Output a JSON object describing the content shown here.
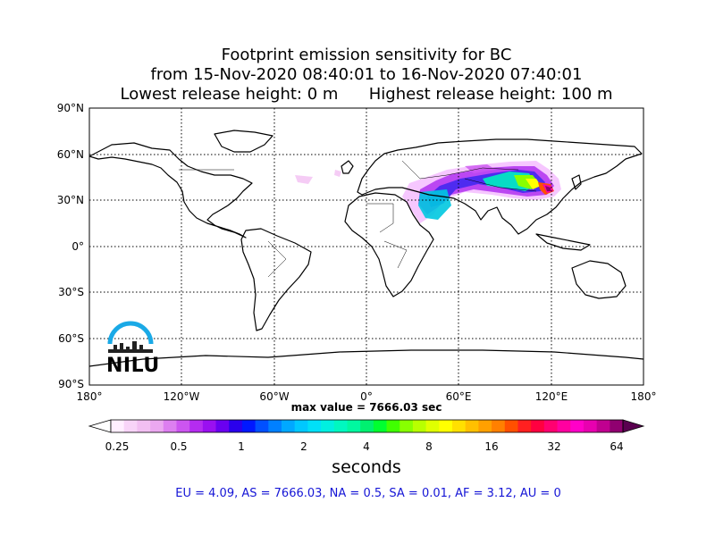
{
  "title": {
    "line1": "Footprint emission sensitivity for BC",
    "line2": "from 15-Nov-2020 08:40:01 to 16-Nov-2020 07:40:01",
    "line3": "Lowest release height: 0 m      Highest release height: 100 m"
  },
  "map": {
    "lat_ticks": [
      "90°N",
      "60°N",
      "30°N",
      "0°",
      "30°S",
      "60°S",
      "90°S"
    ],
    "lon_ticks": [
      "180°",
      "120°W",
      "60°W",
      "0°",
      "60°E",
      "120°E",
      "180°"
    ],
    "max_value": "max value = 7666.03 sec",
    "logo_text": "NILU"
  },
  "colorbar": {
    "ticks": [
      "0.25",
      "0.5",
      "1",
      "2",
      "4",
      "8",
      "16",
      "32",
      "64"
    ],
    "unit": "seconds",
    "colors": [
      "#ffeeff",
      "#f8d4f8",
      "#f2bff2",
      "#eba8f0",
      "#dd7ff0",
      "#cc55f0",
      "#b52cf0",
      "#9a10f0",
      "#6a00f0",
      "#2a00ec",
      "#0018ff",
      "#0050ff",
      "#0080ff",
      "#00a8ff",
      "#00c8ff",
      "#00e0f8",
      "#00f0e0",
      "#00f8c0",
      "#00f8a0",
      "#00f070",
      "#00ff30",
      "#40ff00",
      "#88ff00",
      "#b8ff00",
      "#e0ff00",
      "#ffff00",
      "#ffe000",
      "#ffc000",
      "#ffa000",
      "#ff8000",
      "#ff5000",
      "#ff2020",
      "#ff0040",
      "#ff0070",
      "#ff00a0",
      "#ff00c8",
      "#e800b0",
      "#c00090",
      "#900070"
    ]
  },
  "regions": "EU = 4.09,  AS = 7666.03,  NA = 0.5,  SA = 0.01,  AF = 3.12,  AU = 0"
}
